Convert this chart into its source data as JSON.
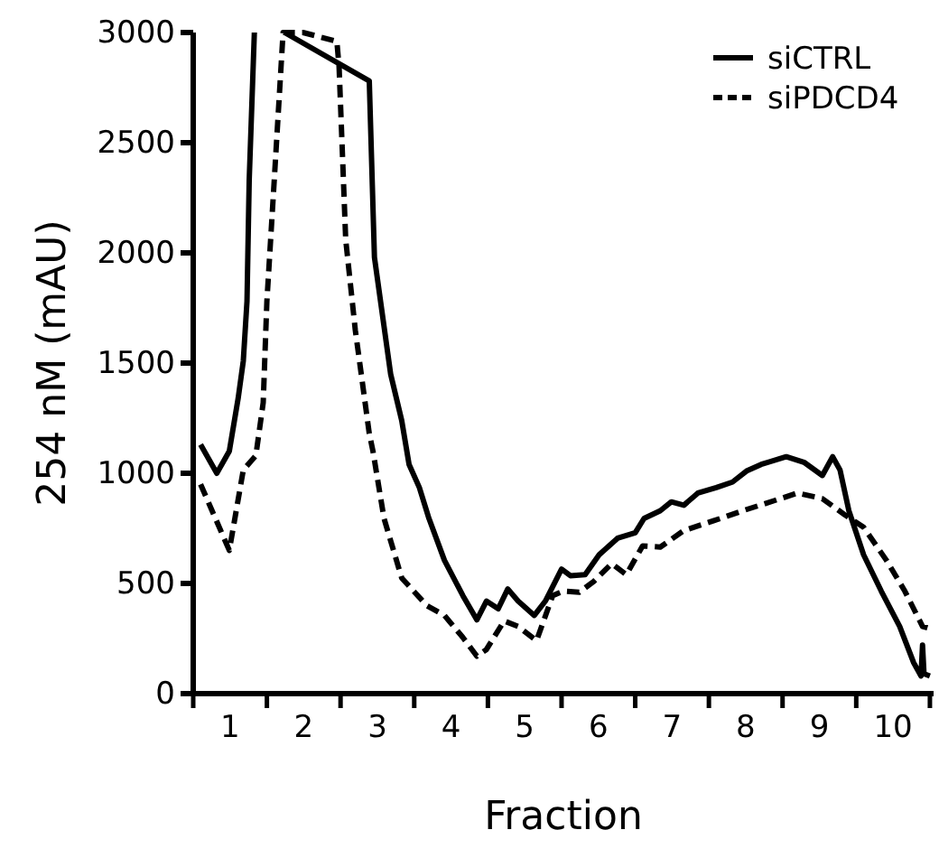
{
  "chart_data": {
    "type": "line",
    "xlabel": "Fraction",
    "ylabel": "254 nM (mAU)",
    "xlim": [
      0,
      10.05
    ],
    "ylim": [
      0,
      3000
    ],
    "xticks": [
      {
        "value": 0,
        "label": null
      },
      {
        "value": 0.5,
        "label": "1"
      },
      {
        "value": 1,
        "label": null
      },
      {
        "value": 1.5,
        "label": "2"
      },
      {
        "value": 2,
        "label": null
      },
      {
        "value": 2.5,
        "label": "3"
      },
      {
        "value": 3,
        "label": null
      },
      {
        "value": 3.5,
        "label": "4"
      },
      {
        "value": 4,
        "label": null
      },
      {
        "value": 4.5,
        "label": "5"
      },
      {
        "value": 5,
        "label": null
      },
      {
        "value": 5.5,
        "label": "6"
      },
      {
        "value": 6,
        "label": null
      },
      {
        "value": 6.5,
        "label": "7"
      },
      {
        "value": 7,
        "label": null
      },
      {
        "value": 7.5,
        "label": "8"
      },
      {
        "value": 8,
        "label": null
      },
      {
        "value": 8.5,
        "label": "9"
      },
      {
        "value": 9,
        "label": null
      },
      {
        "value": 9.5,
        "label": "10"
      },
      {
        "value": 10,
        "label": null
      }
    ],
    "yticks": [
      0,
      500,
      1000,
      1500,
      2000,
      2500,
      3000
    ],
    "grid": false,
    "legend": "top right",
    "marker": "none",
    "series": [
      {
        "name": "siCTRL",
        "color": "#000000",
        "line_style": "solid",
        "x": [
          0.1,
          0.32,
          0.49,
          0.61,
          0.68,
          0.73,
          0.76,
          0.83,
          1.0,
          1.24,
          2.39,
          2.46,
          2.68,
          2.83,
          2.93,
          3.07,
          3.2,
          3.41,
          3.66,
          3.85,
          3.98,
          4.14,
          4.27,
          4.41,
          4.63,
          4.78,
          5.0,
          5.12,
          5.32,
          5.51,
          5.76,
          6.0,
          6.12,
          6.34,
          6.49,
          6.66,
          6.85,
          7.1,
          7.32,
          7.51,
          7.71,
          8.05,
          8.29,
          8.54,
          8.68,
          8.78,
          8.9,
          9.1,
          9.34,
          9.59,
          9.78,
          9.88,
          9.9,
          9.92,
          10.0
        ],
        "values": [
          1130,
          1000,
          1100,
          1340,
          1510,
          1780,
          2330,
          3000,
          null,
          3000,
          2780,
          1980,
          1450,
          1240,
          1040,
          935,
          795,
          605,
          445,
          335,
          420,
          385,
          475,
          420,
          355,
          420,
          565,
          535,
          540,
          630,
          705,
          730,
          795,
          830,
          870,
          855,
          910,
          935,
          960,
          1010,
          1040,
          1075,
          1050,
          990,
          1075,
          1015,
          830,
          630,
          465,
          305,
          140,
          80,
          220,
          90,
          80
        ]
      },
      {
        "name": "siPDCD4",
        "color": "#000000",
        "line_style": "dashed",
        "x": [
          0.1,
          0.49,
          0.68,
          0.85,
          0.95,
          1.0,
          1.1,
          1.22,
          1.49,
          1.95,
          1.98,
          2.07,
          2.2,
          2.39,
          2.44,
          2.59,
          2.83,
          3.17,
          3.41,
          3.66,
          3.85,
          3.98,
          4.22,
          4.41,
          4.66,
          4.88,
          5.02,
          5.24,
          5.44,
          5.68,
          5.88,
          6.1,
          6.34,
          6.66,
          7.07,
          7.46,
          7.88,
          8.2,
          8.54,
          8.85,
          9.1,
          9.41,
          9.66,
          9.9,
          10.0
        ],
        "values": [
          950,
          650,
          1015,
          1080,
          1320,
          1780,
          2330,
          3000,
          3000,
          2960,
          2845,
          2060,
          1650,
          1180,
          1100,
          795,
          525,
          400,
          355,
          255,
          170,
          200,
          330,
          305,
          240,
          445,
          465,
          460,
          510,
          590,
          540,
          670,
          665,
          740,
          785,
          830,
          875,
          910,
          885,
          810,
          755,
          605,
          465,
          305,
          295
        ]
      }
    ]
  }
}
